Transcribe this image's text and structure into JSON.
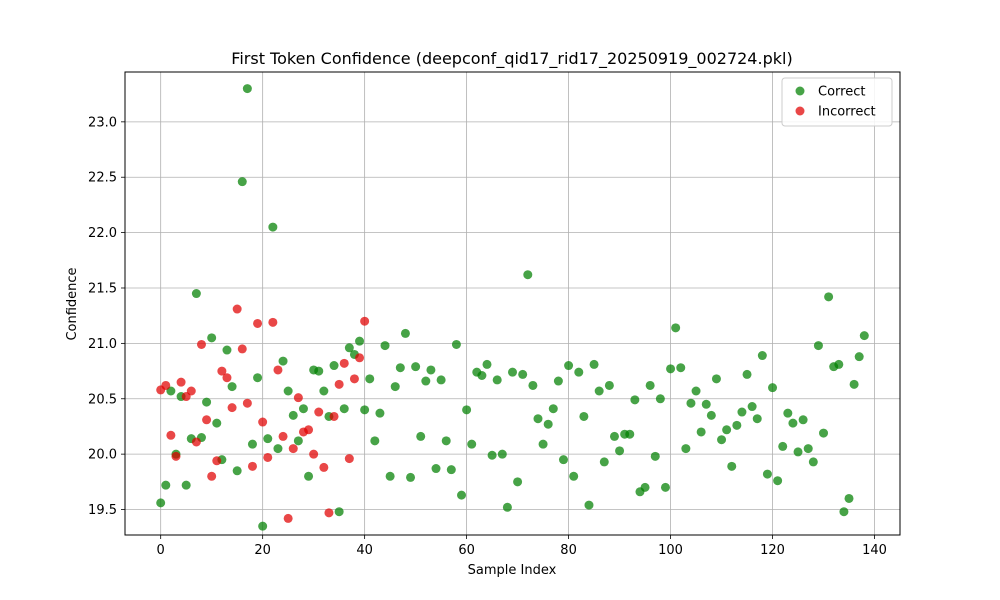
{
  "chart_data": {
    "type": "scatter",
    "title": "First Token Confidence (deepconf_qid17_rid17_20250919_002724.pkl)",
    "xlabel": "Sample Index",
    "ylabel": "Confidence",
    "xlim": [
      -7,
      145
    ],
    "ylim": [
      19.27,
      23.45
    ],
    "xticks": [
      0,
      20,
      40,
      60,
      80,
      100,
      120,
      140
    ],
    "yticks": [
      19.5,
      20.0,
      20.5,
      21.0,
      21.5,
      22.0,
      22.5,
      23.0
    ],
    "grid": true,
    "legend_position": "top-right",
    "series": [
      {
        "name": "Correct",
        "color": "#008000",
        "points": [
          [
            0,
            19.56
          ],
          [
            1,
            19.72
          ],
          [
            2,
            20.57
          ],
          [
            3,
            20.0
          ],
          [
            4,
            20.52
          ],
          [
            5,
            19.72
          ],
          [
            6,
            20.14
          ],
          [
            7,
            21.45
          ],
          [
            8,
            20.15
          ],
          [
            9,
            20.47
          ],
          [
            10,
            21.05
          ],
          [
            11,
            20.28
          ],
          [
            12,
            19.95
          ],
          [
            13,
            20.94
          ],
          [
            14,
            20.61
          ],
          [
            15,
            19.85
          ],
          [
            16,
            22.46
          ],
          [
            17,
            23.3
          ],
          [
            18,
            20.09
          ],
          [
            19,
            20.69
          ],
          [
            20,
            19.35
          ],
          [
            21,
            20.14
          ],
          [
            22,
            22.05
          ],
          [
            23,
            20.05
          ],
          [
            24,
            20.84
          ],
          [
            25,
            20.57
          ],
          [
            26,
            20.35
          ],
          [
            27,
            20.12
          ],
          [
            28,
            20.41
          ],
          [
            29,
            19.8
          ],
          [
            30,
            20.76
          ],
          [
            31,
            20.75
          ],
          [
            32,
            20.57
          ],
          [
            33,
            20.34
          ],
          [
            34,
            20.8
          ],
          [
            35,
            19.48
          ],
          [
            36,
            20.41
          ],
          [
            37,
            20.96
          ],
          [
            38,
            20.9
          ],
          [
            39,
            21.02
          ],
          [
            40,
            20.4
          ],
          [
            41,
            20.68
          ],
          [
            42,
            20.12
          ],
          [
            43,
            20.37
          ],
          [
            44,
            20.98
          ],
          [
            45,
            19.8
          ],
          [
            46,
            20.61
          ],
          [
            47,
            20.78
          ],
          [
            48,
            21.09
          ],
          [
            49,
            19.79
          ],
          [
            50,
            20.79
          ],
          [
            51,
            20.16
          ],
          [
            52,
            20.66
          ],
          [
            53,
            20.76
          ],
          [
            54,
            19.87
          ],
          [
            55,
            20.67
          ],
          [
            56,
            20.12
          ],
          [
            57,
            19.86
          ],
          [
            58,
            20.99
          ],
          [
            59,
            19.63
          ],
          [
            60,
            20.4
          ],
          [
            61,
            20.09
          ],
          [
            62,
            20.74
          ],
          [
            63,
            20.71
          ],
          [
            64,
            20.81
          ],
          [
            65,
            19.99
          ],
          [
            66,
            20.67
          ],
          [
            67,
            20.0
          ],
          [
            68,
            19.52
          ],
          [
            69,
            20.74
          ],
          [
            70,
            19.75
          ],
          [
            71,
            20.72
          ],
          [
            72,
            21.62
          ],
          [
            73,
            20.62
          ],
          [
            74,
            20.32
          ],
          [
            75,
            20.09
          ],
          [
            76,
            20.27
          ],
          [
            77,
            20.41
          ],
          [
            78,
            20.66
          ],
          [
            79,
            19.95
          ],
          [
            80,
            20.8
          ],
          [
            81,
            19.8
          ],
          [
            82,
            20.74
          ],
          [
            83,
            20.34
          ],
          [
            84,
            19.54
          ],
          [
            85,
            20.81
          ],
          [
            86,
            20.57
          ],
          [
            87,
            19.93
          ],
          [
            88,
            20.62
          ],
          [
            89,
            20.16
          ],
          [
            90,
            20.03
          ],
          [
            91,
            20.18
          ],
          [
            92,
            20.18
          ],
          [
            93,
            20.49
          ],
          [
            94,
            19.66
          ],
          [
            95,
            19.7
          ],
          [
            96,
            20.62
          ],
          [
            97,
            19.98
          ],
          [
            98,
            20.5
          ],
          [
            99,
            19.7
          ],
          [
            100,
            20.77
          ],
          [
            101,
            21.14
          ],
          [
            102,
            20.78
          ],
          [
            103,
            20.05
          ],
          [
            104,
            20.46
          ],
          [
            105,
            20.57
          ],
          [
            106,
            20.2
          ],
          [
            107,
            20.45
          ],
          [
            108,
            20.35
          ],
          [
            109,
            20.68
          ],
          [
            110,
            20.13
          ],
          [
            111,
            20.22
          ],
          [
            112,
            19.89
          ],
          [
            113,
            20.26
          ],
          [
            114,
            20.38
          ],
          [
            115,
            20.72
          ],
          [
            116,
            20.43
          ],
          [
            117,
            20.32
          ],
          [
            118,
            20.89
          ],
          [
            119,
            19.82
          ],
          [
            120,
            20.6
          ],
          [
            121,
            19.76
          ],
          [
            122,
            20.07
          ],
          [
            123,
            20.37
          ],
          [
            124,
            20.28
          ],
          [
            125,
            20.02
          ],
          [
            126,
            20.31
          ],
          [
            127,
            20.05
          ],
          [
            128,
            19.93
          ],
          [
            129,
            20.98
          ],
          [
            130,
            20.19
          ],
          [
            131,
            21.42
          ],
          [
            132,
            20.79
          ],
          [
            133,
            20.81
          ],
          [
            134,
            19.48
          ],
          [
            135,
            19.6
          ],
          [
            136,
            20.63
          ],
          [
            137,
            20.88
          ],
          [
            138,
            21.07
          ]
        ]
      },
      {
        "name": "Incorrect",
        "color": "#e00000",
        "points": [
          [
            0,
            20.58
          ],
          [
            1,
            20.62
          ],
          [
            2,
            20.17
          ],
          [
            3,
            19.98
          ],
          [
            4,
            20.65
          ],
          [
            5,
            20.52
          ],
          [
            6,
            20.57
          ],
          [
            7,
            20.11
          ],
          [
            8,
            20.99
          ],
          [
            9,
            20.31
          ],
          [
            10,
            19.8
          ],
          [
            11,
            19.94
          ],
          [
            12,
            20.75
          ],
          [
            13,
            20.69
          ],
          [
            14,
            20.42
          ],
          [
            15,
            21.31
          ],
          [
            16,
            20.95
          ],
          [
            17,
            20.46
          ],
          [
            18,
            19.89
          ],
          [
            19,
            21.18
          ],
          [
            20,
            20.29
          ],
          [
            21,
            19.97
          ],
          [
            22,
            21.19
          ],
          [
            23,
            20.76
          ],
          [
            24,
            20.16
          ],
          [
            25,
            19.42
          ],
          [
            26,
            20.05
          ],
          [
            27,
            20.51
          ],
          [
            28,
            20.2
          ],
          [
            29,
            20.22
          ],
          [
            30,
            20.0
          ],
          [
            31,
            20.38
          ],
          [
            32,
            19.88
          ],
          [
            33,
            19.47
          ],
          [
            34,
            20.34
          ],
          [
            35,
            20.63
          ],
          [
            36,
            20.82
          ],
          [
            37,
            19.96
          ],
          [
            38,
            20.68
          ],
          [
            39,
            20.87
          ],
          [
            40,
            21.2
          ]
        ]
      }
    ]
  }
}
